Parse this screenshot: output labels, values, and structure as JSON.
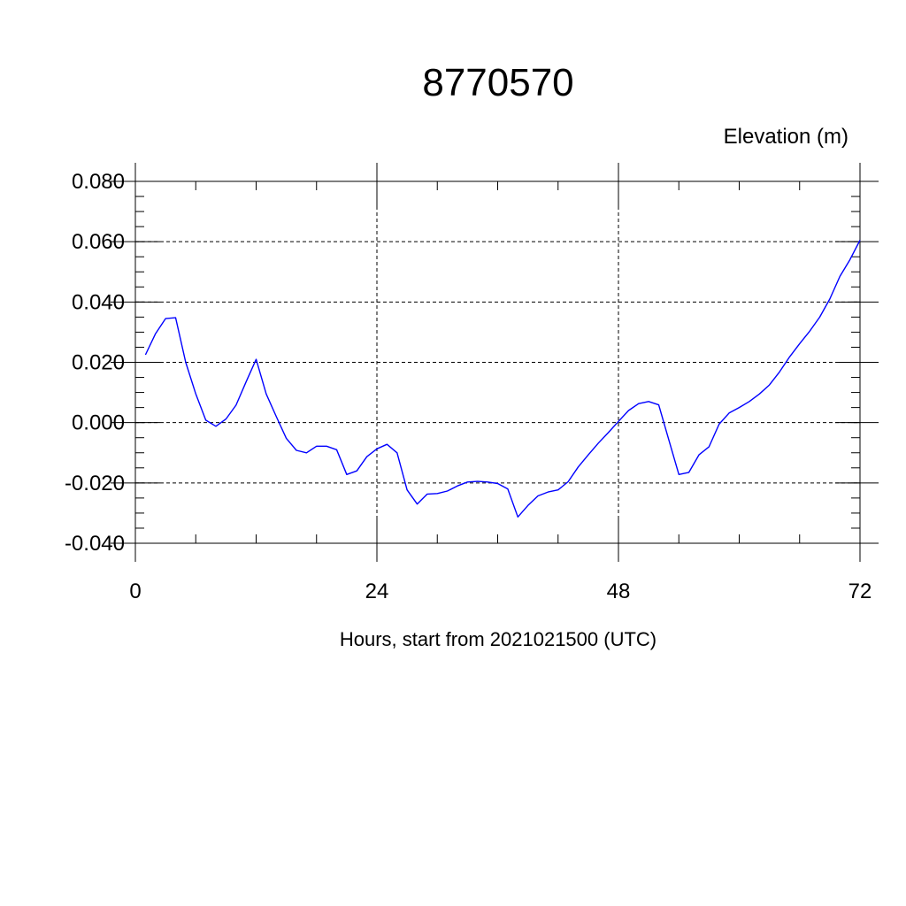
{
  "chart_data": {
    "type": "line",
    "title": "8770570",
    "ylabel": "Elevation (m)",
    "xlabel": "Hours, start from 2021021500 (UTC)",
    "xlim": [
      0,
      72
    ],
    "ylim": [
      -0.04,
      0.08
    ],
    "xticks": [
      0,
      24,
      48,
      72
    ],
    "xtick_labels": [
      "0",
      "24",
      "48",
      "72"
    ],
    "yticks": [
      -0.04,
      -0.02,
      0.0,
      0.02,
      0.04,
      0.06,
      0.08
    ],
    "ytick_labels": [
      "-0.040",
      "-0.020",
      "0.000",
      "0.020",
      "0.040",
      "0.060",
      "0.080"
    ],
    "grid": true,
    "line_color": "#0000ff",
    "series": [
      {
        "x": [
          1,
          2,
          3,
          4,
          5,
          6,
          7,
          8,
          9,
          10,
          11,
          12,
          13,
          14,
          15,
          16,
          17,
          18,
          19,
          20,
          21,
          22,
          23,
          24,
          25,
          26,
          27,
          28,
          29,
          30,
          31,
          32,
          33,
          34,
          35,
          36,
          37,
          38,
          39,
          40,
          41,
          42,
          43,
          44,
          45,
          46,
          47,
          48,
          49,
          50,
          51,
          52,
          53,
          54,
          55,
          56,
          57,
          58,
          59,
          60,
          61,
          62,
          63,
          64,
          65,
          66,
          67,
          68,
          69,
          70,
          71,
          72
        ],
        "values": [
          0.0225,
          0.0295,
          0.0345,
          0.0348,
          0.02,
          0.0095,
          0.0008,
          -0.0012,
          0.0012,
          0.0058,
          0.0135,
          0.021,
          0.0095,
          0.002,
          -0.0052,
          -0.0092,
          -0.01,
          -0.0078,
          -0.0078,
          -0.009,
          -0.0172,
          -0.016,
          -0.0113,
          -0.0087,
          -0.0072,
          -0.01,
          -0.0223,
          -0.027,
          -0.0237,
          -0.0235,
          -0.0227,
          -0.021,
          -0.0197,
          -0.0195,
          -0.0197,
          -0.0202,
          -0.022,
          -0.0313,
          -0.0275,
          -0.0243,
          -0.023,
          -0.0223,
          -0.0196,
          -0.0147,
          -0.0107,
          -0.0068,
          -0.0033,
          0.0004,
          0.004,
          0.0063,
          0.007,
          0.0059,
          -0.0057,
          -0.0172,
          -0.0165,
          -0.0107,
          -0.008,
          -0.0005,
          0.0032,
          0.005,
          0.007,
          0.0095,
          0.0125,
          0.0168,
          0.0218,
          0.0262,
          0.0303,
          0.035,
          0.041,
          0.0485,
          0.054,
          0.0605
        ]
      }
    ]
  }
}
